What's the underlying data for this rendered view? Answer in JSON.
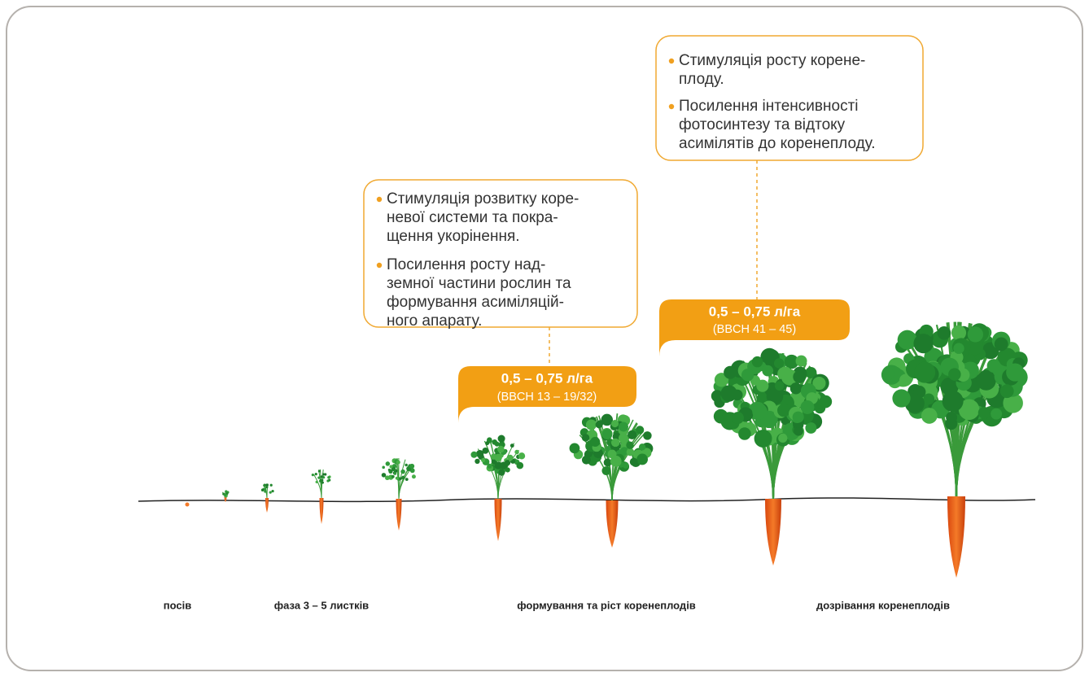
{
  "callouts": [
    {
      "bullets": [
        {
          "lines": [
            "Стимуляція розвитку коре-",
            "невої системи та покра-",
            "щення укорінення."
          ]
        },
        {
          "lines": [
            "Посилення росту над-",
            "земної частини рослин та",
            "формування асиміляцій-",
            "ного апарату."
          ]
        }
      ],
      "dose": "0,5 – 0,75 л/га",
      "stage": "(BBCH 13 – 19/32)"
    },
    {
      "bullets": [
        {
          "lines": [
            "Стимуляція росту корене-",
            "плоду."
          ]
        },
        {
          "lines": [
            "Посилення інтенсивності",
            "фотосинтезу та відтоку",
            "асимілятів до коренеплоду."
          ]
        }
      ],
      "dose": "0,5 – 0,75 л/га",
      "stage": "(BBCH 41 – 45)"
    }
  ],
  "stages": [
    "посів",
    "фаза 3 – 5 листків",
    "формування та ріст коренеплодів",
    "дозрівання коренеплодів"
  ]
}
